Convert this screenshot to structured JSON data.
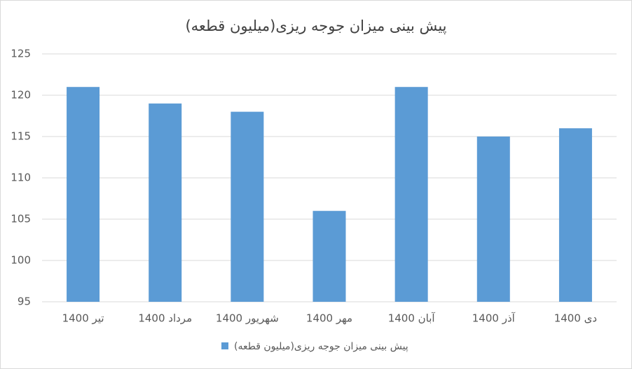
{
  "chart_data": {
    "type": "bar",
    "title": "پیش بینی میزان جوجه ریزی(میلیون قطعه)",
    "categories": [
      "تیر 1400",
      "مرداد 1400",
      "شهریور 1400",
      "مهر 1400",
      "آبان 1400",
      "آذر 1400",
      "دی 1400"
    ],
    "series": [
      {
        "name": "پیش بینی میزان جوجه ریزی(میلیون قطعه)",
        "color": "#5b9bd5",
        "values": [
          121,
          119,
          118,
          106,
          121,
          115,
          116
        ]
      }
    ],
    "ylim": [
      95,
      125
    ],
    "yticks": [
      95,
      100,
      105,
      110,
      115,
      120,
      125
    ],
    "grid": true,
    "legend": "bottom"
  }
}
